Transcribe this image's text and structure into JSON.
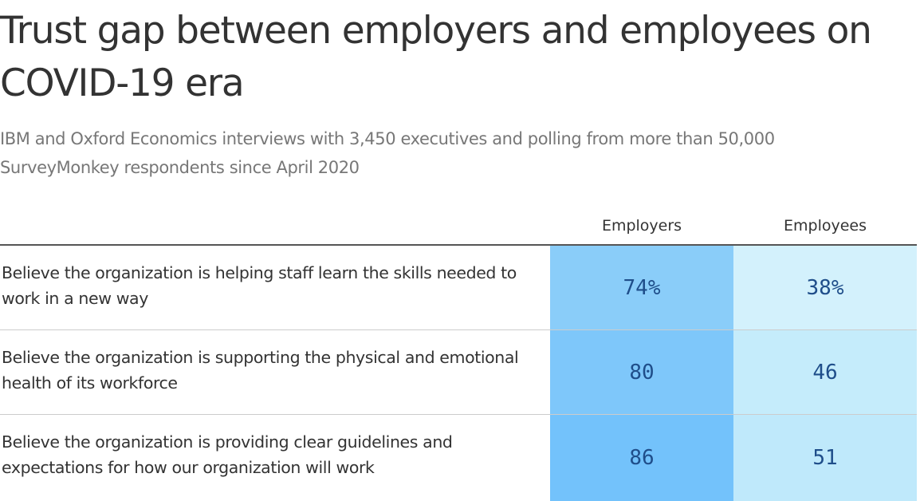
{
  "title": "Trust gap between employers and employees on COVID-19 era",
  "subtitle": "IBM and Oxford Economics interviews with 3,450 executives and polling from more than 50,000 SurveyMonkey respondents since April 2020",
  "chart_data": {
    "type": "table",
    "columns": [
      "Employers",
      "Employees"
    ],
    "rows": [
      {
        "label": "Believe the organization is helping staff learn the skills needed to work in a new way",
        "values": [
          74,
          38
        ],
        "display": [
          "74%",
          "38%"
        ]
      },
      {
        "label": "Believe the organization is supporting the physical and emotional health of its workforce",
        "values": [
          80,
          46
        ],
        "display": [
          "80",
          "46"
        ]
      },
      {
        "label": "Believe the organization is providing clear guidelines and expectations for how our organization will work",
        "values": [
          86,
          51
        ],
        "display": [
          "86",
          "51"
        ]
      }
    ],
    "colors": {
      "employers": [
        "#8acdf9",
        "#7ec7fa",
        "#73c2fb"
      ],
      "employees": [
        "#d3f1fc",
        "#c5ecfb",
        "#bfe9fb"
      ],
      "value_text": "#1f4e8a"
    }
  }
}
